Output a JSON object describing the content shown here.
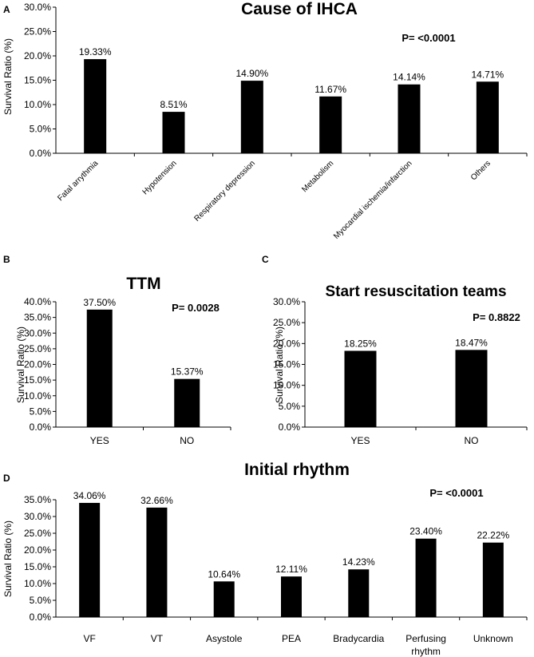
{
  "chart_data": [
    {
      "panel": "A",
      "type": "bar",
      "title": "Cause of IHCA",
      "annotation": "P= <0.0001",
      "ylabel": "Survival Ratio (%)",
      "xlabel": "",
      "ylim": [
        0,
        30
      ],
      "yticks": [
        "0.0%",
        "5.0%",
        "10.0%",
        "15.0%",
        "20.0%",
        "25.0%",
        "30.0%"
      ],
      "categories": [
        "Fatal arrythmia",
        "Hypotension",
        "Respiratory depression",
        "Metabolism",
        "Myocardial ischemia/infarction",
        "Others"
      ],
      "values": [
        19.33,
        8.51,
        14.9,
        11.67,
        14.14,
        14.71
      ],
      "value_labels": [
        "19.33%",
        "8.51%",
        "14.90%",
        "11.67%",
        "14.14%",
        "14.71%"
      ]
    },
    {
      "panel": "B",
      "type": "bar",
      "title": "TTM",
      "annotation": "P= 0.0028",
      "ylabel": "Survival Ratio (%)",
      "xlabel": "",
      "ylim": [
        0,
        40
      ],
      "yticks": [
        "0.0%",
        "5.0%",
        "10.0%",
        "15.0%",
        "20.0%",
        "25.0%",
        "30.0%",
        "35.0%",
        "40.0%"
      ],
      "categories": [
        "YES",
        "NO"
      ],
      "values": [
        37.5,
        15.37
      ],
      "value_labels": [
        "37.50%",
        "15.37%"
      ]
    },
    {
      "panel": "C",
      "type": "bar",
      "title": "Start resuscitation teams",
      "annotation": "P= 0.8822",
      "ylabel": "Survival Ratio (%)",
      "xlabel": "",
      "ylim": [
        0,
        30
      ],
      "yticks": [
        "0.0%",
        "5.0%",
        "10.0%",
        "15.0%",
        "20.0%",
        "25.0%",
        "30.0%"
      ],
      "categories": [
        "YES",
        "NO"
      ],
      "values": [
        18.25,
        18.47
      ],
      "value_labels": [
        "18.25%",
        "18.47%"
      ]
    },
    {
      "panel": "D",
      "type": "bar",
      "title": "Initial rhythm",
      "annotation": "P= <0.0001",
      "ylabel": "Survival Ratio (%)",
      "xlabel": "",
      "ylim": [
        0,
        35
      ],
      "yticks": [
        "0.0%",
        "5.0%",
        "10.0%",
        "15.0%",
        "20.0%",
        "25.0%",
        "30.0%",
        "35.0%"
      ],
      "categories": [
        "VF",
        "VT",
        "Asystole",
        "PEA",
        "Bradycardia",
        "Perfusing rhythm",
        "Unknown"
      ],
      "values": [
        34.06,
        32.66,
        10.64,
        12.11,
        14.23,
        23.4,
        22.22
      ],
      "value_labels": [
        "34.06%",
        "32.66%",
        "10.64%",
        "12.11%",
        "14.23%",
        "23.40%",
        "22.22%"
      ]
    }
  ]
}
